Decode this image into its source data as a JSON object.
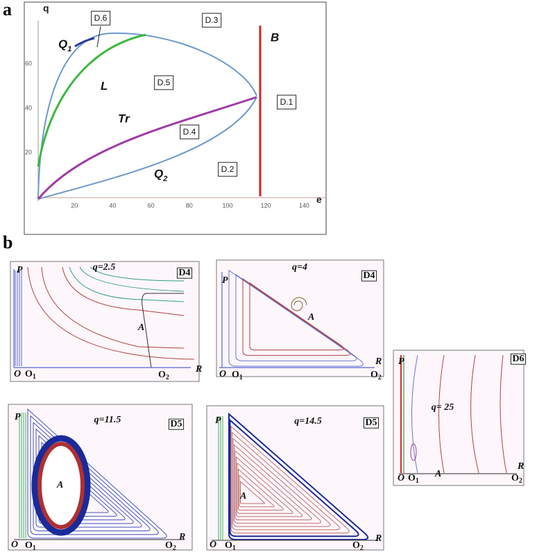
{
  "panel_a": {
    "letter": "a",
    "y_axis_label": "q",
    "x_axis_label": "e",
    "x_ticks": [
      20,
      40,
      60,
      80,
      100,
      120,
      140
    ],
    "y_ticks": [
      20,
      40,
      60
    ],
    "regions": [
      "D.6",
      "D.3",
      "D.5",
      "D.1",
      "D.4",
      "D.2"
    ],
    "curve_labels": {
      "B": "B",
      "L": "L",
      "Tr": "Tr",
      "Q1": {
        "main": "Q",
        "sub": "1"
      },
      "Q2": {
        "main": "Q",
        "sub": "2"
      }
    }
  },
  "panel_b": {
    "letter": "b",
    "subpanels": [
      {
        "q": "q=2.5",
        "region": "D4",
        "P": "P",
        "O": "O",
        "O1": {
          "main": "O",
          "sub": "1"
        },
        "O2": {
          "main": "O",
          "sub": "2"
        },
        "R": "R",
        "A": "A"
      },
      {
        "q": "q=4",
        "region": "D4",
        "P": "P",
        "O": "O",
        "O1": {
          "main": "O",
          "sub": "1"
        },
        "O2": {
          "main": "O",
          "sub": "2"
        },
        "R": "R",
        "A": "A"
      },
      {
        "q": "q= 25",
        "region": "D6",
        "P": "P",
        "O": "O",
        "O1": {
          "main": "O",
          "sub": "1"
        },
        "O2": {
          "main": "O",
          "sub": "2"
        },
        "R": "R",
        "A": "A"
      },
      {
        "q": "q=11.5",
        "region": "D5",
        "P": "P",
        "O": "O",
        "O1": {
          "main": "O",
          "sub": "1"
        },
        "O2": {
          "main": "O",
          "sub": "2"
        },
        "R": "R",
        "A": "A"
      },
      {
        "q": "q=14.5",
        "region": "D5",
        "P": "P",
        "O": "O",
        "O1": {
          "main": "O",
          "sub": "1"
        },
        "O2": {
          "main": "O",
          "sub": "2"
        },
        "R": "R",
        "A": "A"
      }
    ]
  }
}
